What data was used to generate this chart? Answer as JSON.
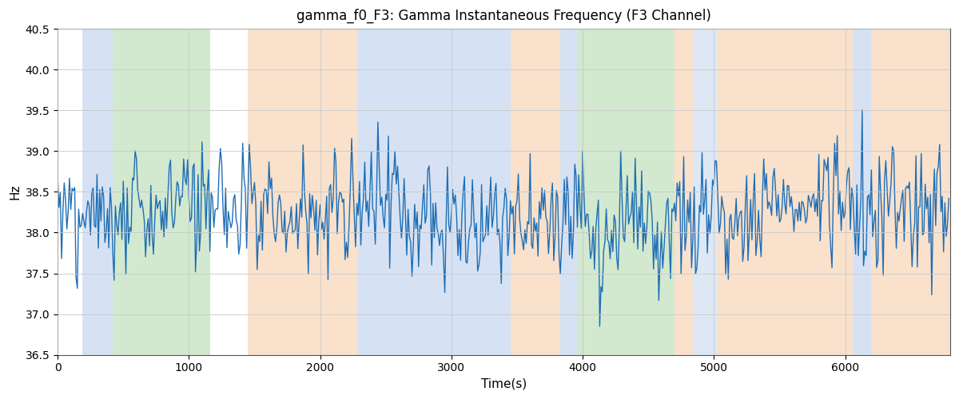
{
  "title": "gamma_f0_F3: Gamma Instantaneous Frequency (F3 Channel)",
  "xlabel": "Time(s)",
  "ylabel": "Hz",
  "ylim": [
    36.5,
    40.5
  ],
  "xlim": [
    0,
    6800
  ],
  "bg_bands": [
    {
      "xmin": 190,
      "xmax": 420,
      "color": "#aec6e8",
      "alpha": 0.5
    },
    {
      "xmin": 420,
      "xmax": 1160,
      "color": "#a8d4a0",
      "alpha": 0.5
    },
    {
      "xmin": 1450,
      "xmax": 2280,
      "color": "#f5c49a",
      "alpha": 0.5
    },
    {
      "xmin": 2280,
      "xmax": 3450,
      "color": "#aec6e8",
      "alpha": 0.5
    },
    {
      "xmin": 3450,
      "xmax": 3830,
      "color": "#f5c49a",
      "alpha": 0.5
    },
    {
      "xmin": 3830,
      "xmax": 3960,
      "color": "#aec6e8",
      "alpha": 0.5
    },
    {
      "xmin": 3960,
      "xmax": 4700,
      "color": "#a8d4a0",
      "alpha": 0.5
    },
    {
      "xmin": 4700,
      "xmax": 4840,
      "color": "#f5c49a",
      "alpha": 0.5
    },
    {
      "xmin": 4840,
      "xmax": 5020,
      "color": "#aec6e8",
      "alpha": 0.4
    },
    {
      "xmin": 5020,
      "xmax": 6060,
      "color": "#f5c49a",
      "alpha": 0.5
    },
    {
      "xmin": 6060,
      "xmax": 6200,
      "color": "#aec6e8",
      "alpha": 0.5
    },
    {
      "xmin": 6200,
      "xmax": 6800,
      "color": "#f5c49a",
      "alpha": 0.5
    }
  ],
  "line_color": "#1f6eb5",
  "line_width": 1.0,
  "grid_color": "#c8c8c8",
  "background_color": "#ffffff",
  "base_freq": 38.25,
  "xticks": [
    0,
    1000,
    2000,
    3000,
    4000,
    5000,
    6000
  ],
  "yticks": [
    36.5,
    37.0,
    37.5,
    38.0,
    38.5,
    39.0,
    39.5,
    40.0,
    40.5
  ],
  "figsize": [
    12.0,
    5.0
  ],
  "dpi": 100
}
